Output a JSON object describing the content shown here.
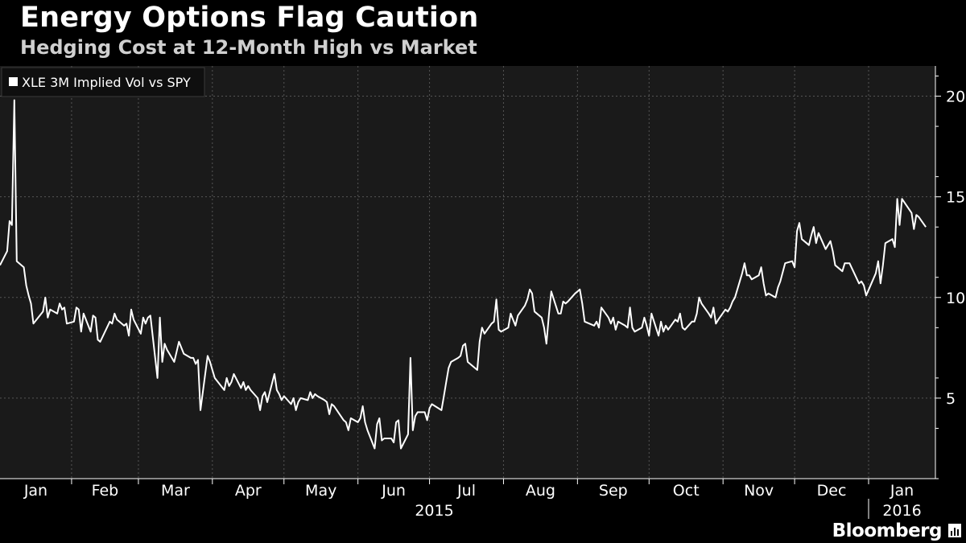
{
  "header": {
    "title": "Energy Options Flag Caution",
    "subtitle": "Hedging Cost at 12-Month High vs Market"
  },
  "brand": {
    "name": "Bloomberg"
  },
  "colors": {
    "background": "#000000",
    "plot_background": "#1a1a1a",
    "line": "#ffffff",
    "grid": "#555555",
    "axis_text": "#ffffff"
  },
  "chart_data": {
    "type": "line",
    "title": "Energy Options Flag Caution",
    "subtitle": "Hedging Cost at 12-Month High vs Market",
    "xlabel": "",
    "ylabel": "",
    "ylim": [
      1,
      21.5
    ],
    "yticks": [
      5,
      10,
      15,
      20
    ],
    "grid": true,
    "legend_position": "top-left",
    "x_range": [
      "2015-01-02",
      "2016-01-29"
    ],
    "x_month_labels": [
      "Jan",
      "Feb",
      "Mar",
      "Apr",
      "May",
      "Jun",
      "Jul",
      "Aug",
      "Sep",
      "Oct",
      "Nov",
      "Dec",
      "Jan"
    ],
    "x_year_labels": [
      "2015",
      "2016"
    ],
    "series": [
      {
        "name": "XLE 3M Implied Vol vs SPY",
        "color": "#ffffff",
        "points": [
          [
            "2015-01-02",
            11.6
          ],
          [
            "2015-01-05",
            12.3
          ],
          [
            "2015-01-06",
            13.8
          ],
          [
            "2015-01-07",
            13.6
          ],
          [
            "2015-01-08",
            19.8
          ],
          [
            "2015-01-09",
            11.8
          ],
          [
            "2015-01-12",
            11.5
          ],
          [
            "2015-01-13",
            10.6
          ],
          [
            "2015-01-14",
            10.1
          ],
          [
            "2015-01-15",
            9.7
          ],
          [
            "2015-01-16",
            8.7
          ],
          [
            "2015-01-20",
            9.3
          ],
          [
            "2015-01-21",
            10.0
          ],
          [
            "2015-01-22",
            9.0
          ],
          [
            "2015-01-23",
            9.4
          ],
          [
            "2015-01-26",
            9.2
          ],
          [
            "2015-01-27",
            9.7
          ],
          [
            "2015-01-28",
            9.4
          ],
          [
            "2015-01-29",
            9.5
          ],
          [
            "2015-01-30",
            8.7
          ],
          [
            "2015-02-02",
            8.8
          ],
          [
            "2015-02-03",
            9.5
          ],
          [
            "2015-02-04",
            9.4
          ],
          [
            "2015-02-05",
            8.3
          ],
          [
            "2015-02-06",
            9.2
          ],
          [
            "2015-02-09",
            8.3
          ],
          [
            "2015-02-10",
            9.1
          ],
          [
            "2015-02-11",
            9.0
          ],
          [
            "2015-02-12",
            7.9
          ],
          [
            "2015-02-13",
            7.8
          ],
          [
            "2015-02-17",
            8.8
          ],
          [
            "2015-02-18",
            8.7
          ],
          [
            "2015-02-19",
            9.2
          ],
          [
            "2015-02-20",
            8.9
          ],
          [
            "2015-02-23",
            8.6
          ],
          [
            "2015-02-24",
            8.7
          ],
          [
            "2015-02-25",
            8.1
          ],
          [
            "2015-02-26",
            9.4
          ],
          [
            "2015-02-27",
            8.9
          ],
          [
            "2015-03-02",
            8.2
          ],
          [
            "2015-03-03",
            9.0
          ],
          [
            "2015-03-04",
            8.7
          ],
          [
            "2015-03-05",
            9.0
          ],
          [
            "2015-03-06",
            9.1
          ],
          [
            "2015-03-09",
            6.0
          ],
          [
            "2015-03-10",
            9.0
          ],
          [
            "2015-03-11",
            6.8
          ],
          [
            "2015-03-12",
            7.7
          ],
          [
            "2015-03-13",
            7.4
          ],
          [
            "2015-03-16",
            6.8
          ],
          [
            "2015-03-17",
            7.3
          ],
          [
            "2015-03-18",
            7.8
          ],
          [
            "2015-03-19",
            7.5
          ],
          [
            "2015-03-20",
            7.2
          ],
          [
            "2015-03-23",
            7.0
          ],
          [
            "2015-03-24",
            7.0
          ],
          [
            "2015-03-25",
            6.7
          ],
          [
            "2015-03-26",
            6.9
          ],
          [
            "2015-03-27",
            4.4
          ],
          [
            "2015-03-30",
            7.1
          ],
          [
            "2015-03-31",
            6.8
          ],
          [
            "2015-04-01",
            6.4
          ],
          [
            "2015-04-02",
            6.0
          ],
          [
            "2015-04-06",
            5.4
          ],
          [
            "2015-04-07",
            6.0
          ],
          [
            "2015-04-08",
            5.6
          ],
          [
            "2015-04-09",
            5.8
          ],
          [
            "2015-04-10",
            6.2
          ],
          [
            "2015-04-13",
            5.5
          ],
          [
            "2015-04-14",
            5.8
          ],
          [
            "2015-04-15",
            5.4
          ],
          [
            "2015-04-16",
            5.6
          ],
          [
            "2015-04-17",
            5.4
          ],
          [
            "2015-04-20",
            5.0
          ],
          [
            "2015-04-21",
            4.4
          ],
          [
            "2015-04-22",
            5.1
          ],
          [
            "2015-04-23",
            5.3
          ],
          [
            "2015-04-24",
            4.8
          ],
          [
            "2015-04-27",
            6.2
          ],
          [
            "2015-04-28",
            5.4
          ],
          [
            "2015-04-29",
            5.2
          ],
          [
            "2015-04-30",
            4.9
          ],
          [
            "2015-05-01",
            5.1
          ],
          [
            "2015-05-04",
            4.7
          ],
          [
            "2015-05-05",
            5.0
          ],
          [
            "2015-05-06",
            4.4
          ],
          [
            "2015-05-07",
            4.8
          ],
          [
            "2015-05-08",
            5.0
          ],
          [
            "2015-05-11",
            4.9
          ],
          [
            "2015-05-12",
            5.3
          ],
          [
            "2015-05-13",
            5.0
          ],
          [
            "2015-05-14",
            5.2
          ],
          [
            "2015-05-15",
            5.1
          ],
          [
            "2015-05-18",
            4.9
          ],
          [
            "2015-05-19",
            4.8
          ],
          [
            "2015-05-20",
            4.2
          ],
          [
            "2015-05-21",
            4.7
          ],
          [
            "2015-05-22",
            4.6
          ],
          [
            "2015-05-26",
            3.9
          ],
          [
            "2015-05-27",
            3.8
          ],
          [
            "2015-05-28",
            3.4
          ],
          [
            "2015-05-29",
            4.0
          ],
          [
            "2015-06-01",
            3.8
          ],
          [
            "2015-06-02",
            4.0
          ],
          [
            "2015-06-03",
            4.6
          ],
          [
            "2015-06-04",
            3.8
          ],
          [
            "2015-06-05",
            3.4
          ],
          [
            "2015-06-08",
            2.5
          ],
          [
            "2015-06-09",
            3.7
          ],
          [
            "2015-06-10",
            4.0
          ],
          [
            "2015-06-11",
            2.9
          ],
          [
            "2015-06-12",
            3.0
          ],
          [
            "2015-06-15",
            3.0
          ],
          [
            "2015-06-16",
            2.8
          ],
          [
            "2015-06-17",
            3.8
          ],
          [
            "2015-06-18",
            3.9
          ],
          [
            "2015-06-19",
            2.5
          ],
          [
            "2015-06-22",
            3.2
          ],
          [
            "2015-06-23",
            7.0
          ],
          [
            "2015-06-24",
            3.4
          ],
          [
            "2015-06-25",
            4.1
          ],
          [
            "2015-06-26",
            4.3
          ],
          [
            "2015-06-29",
            4.3
          ],
          [
            "2015-06-30",
            3.9
          ],
          [
            "2015-07-01",
            4.5
          ],
          [
            "2015-07-02",
            4.7
          ],
          [
            "2015-07-06",
            4.4
          ],
          [
            "2015-07-07",
            5.1
          ],
          [
            "2015-07-08",
            5.8
          ],
          [
            "2015-07-09",
            6.5
          ],
          [
            "2015-07-10",
            6.8
          ],
          [
            "2015-07-13",
            7.0
          ],
          [
            "2015-07-14",
            7.1
          ],
          [
            "2015-07-15",
            7.6
          ],
          [
            "2015-07-16",
            7.7
          ],
          [
            "2015-07-17",
            6.8
          ],
          [
            "2015-07-20",
            6.5
          ],
          [
            "2015-07-21",
            6.4
          ],
          [
            "2015-07-22",
            7.8
          ],
          [
            "2015-07-23",
            8.5
          ],
          [
            "2015-07-24",
            8.2
          ],
          [
            "2015-07-27",
            8.7
          ],
          [
            "2015-07-28",
            8.8
          ],
          [
            "2015-07-29",
            9.9
          ],
          [
            "2015-07-30",
            8.4
          ],
          [
            "2015-07-31",
            8.3
          ],
          [
            "2015-08-03",
            8.5
          ],
          [
            "2015-08-04",
            9.2
          ],
          [
            "2015-08-05",
            8.9
          ],
          [
            "2015-08-06",
            8.6
          ],
          [
            "2015-08-07",
            9.1
          ],
          [
            "2015-08-10",
            9.6
          ],
          [
            "2015-08-11",
            9.9
          ],
          [
            "2015-08-12",
            10.4
          ],
          [
            "2015-08-13",
            10.2
          ],
          [
            "2015-08-14",
            9.3
          ],
          [
            "2015-08-17",
            9.0
          ],
          [
            "2015-08-18",
            8.5
          ],
          [
            "2015-08-19",
            7.7
          ],
          [
            "2015-08-20",
            9.1
          ],
          [
            "2015-08-21",
            10.3
          ],
          [
            "2015-08-24",
            9.2
          ],
          [
            "2015-08-25",
            9.2
          ],
          [
            "2015-08-26",
            9.8
          ],
          [
            "2015-08-27",
            9.7
          ],
          [
            "2015-08-28",
            9.8
          ],
          [
            "2015-08-31",
            10.2
          ],
          [
            "2015-09-01",
            10.3
          ],
          [
            "2015-09-02",
            10.4
          ],
          [
            "2015-09-03",
            9.7
          ],
          [
            "2015-09-04",
            8.8
          ],
          [
            "2015-09-08",
            8.6
          ],
          [
            "2015-09-09",
            8.8
          ],
          [
            "2015-09-10",
            8.5
          ],
          [
            "2015-09-11",
            9.5
          ],
          [
            "2015-09-14",
            9.0
          ],
          [
            "2015-09-15",
            8.7
          ],
          [
            "2015-09-16",
            9.0
          ],
          [
            "2015-09-17",
            8.4
          ],
          [
            "2015-09-18",
            8.8
          ],
          [
            "2015-09-21",
            8.6
          ],
          [
            "2015-09-22",
            8.5
          ],
          [
            "2015-09-23",
            9.5
          ],
          [
            "2015-09-24",
            8.5
          ],
          [
            "2015-09-25",
            8.3
          ],
          [
            "2015-09-28",
            8.5
          ],
          [
            "2015-09-29",
            9.0
          ],
          [
            "2015-09-30",
            8.6
          ],
          [
            "2015-10-01",
            8.1
          ],
          [
            "2015-10-02",
            9.2
          ],
          [
            "2015-10-05",
            8.1
          ],
          [
            "2015-10-06",
            8.8
          ],
          [
            "2015-10-07",
            8.3
          ],
          [
            "2015-10-08",
            8.6
          ],
          [
            "2015-10-09",
            8.4
          ],
          [
            "2015-10-12",
            8.9
          ],
          [
            "2015-10-13",
            8.8
          ],
          [
            "2015-10-14",
            9.2
          ],
          [
            "2015-10-15",
            8.5
          ],
          [
            "2015-10-16",
            8.4
          ],
          [
            "2015-10-19",
            8.8
          ],
          [
            "2015-10-20",
            8.8
          ],
          [
            "2015-10-21",
            9.2
          ],
          [
            "2015-10-22",
            10.0
          ],
          [
            "2015-10-23",
            9.7
          ],
          [
            "2015-10-26",
            9.2
          ],
          [
            "2015-10-27",
            9.0
          ],
          [
            "2015-10-28",
            9.5
          ],
          [
            "2015-10-29",
            8.7
          ],
          [
            "2015-10-30",
            8.9
          ],
          [
            "2015-11-02",
            9.4
          ],
          [
            "2015-11-03",
            9.3
          ],
          [
            "2015-11-04",
            9.5
          ],
          [
            "2015-11-05",
            9.8
          ],
          [
            "2015-11-06",
            10.0
          ],
          [
            "2015-11-09",
            11.2
          ],
          [
            "2015-11-10",
            11.7
          ],
          [
            "2015-11-11",
            11.1
          ],
          [
            "2015-11-12",
            11.1
          ],
          [
            "2015-11-13",
            10.9
          ],
          [
            "2015-11-16",
            11.1
          ],
          [
            "2015-11-17",
            11.5
          ],
          [
            "2015-11-18",
            10.7
          ],
          [
            "2015-11-19",
            10.1
          ],
          [
            "2015-11-20",
            10.2
          ],
          [
            "2015-11-23",
            10.0
          ],
          [
            "2015-11-24",
            10.5
          ],
          [
            "2015-11-25",
            10.8
          ],
          [
            "2015-11-27",
            11.7
          ],
          [
            "2015-11-30",
            11.8
          ],
          [
            "2015-12-01",
            11.5
          ],
          [
            "2015-12-02",
            13.3
          ],
          [
            "2015-12-03",
            13.7
          ],
          [
            "2015-12-04",
            12.9
          ],
          [
            "2015-12-07",
            12.6
          ],
          [
            "2015-12-08",
            13.1
          ],
          [
            "2015-12-09",
            13.5
          ],
          [
            "2015-12-10",
            12.7
          ],
          [
            "2015-12-11",
            13.2
          ],
          [
            "2015-12-14",
            12.4
          ],
          [
            "2015-12-15",
            12.6
          ],
          [
            "2015-12-16",
            12.8
          ],
          [
            "2015-12-17",
            12.3
          ],
          [
            "2015-12-18",
            11.6
          ],
          [
            "2015-12-21",
            11.3
          ],
          [
            "2015-12-22",
            11.7
          ],
          [
            "2015-12-23",
            11.7
          ],
          [
            "2015-12-24",
            11.7
          ],
          [
            "2015-12-28",
            10.7
          ],
          [
            "2015-12-29",
            10.8
          ],
          [
            "2015-12-30",
            10.6
          ],
          [
            "2015-12-31",
            10.1
          ],
          [
            "2016-01-04",
            11.2
          ],
          [
            "2016-01-05",
            11.8
          ],
          [
            "2016-01-06",
            10.7
          ],
          [
            "2016-01-07",
            11.6
          ],
          [
            "2016-01-08",
            12.7
          ],
          [
            "2016-01-11",
            12.9
          ],
          [
            "2016-01-12",
            12.5
          ],
          [
            "2016-01-13",
            14.9
          ],
          [
            "2016-01-14",
            13.6
          ],
          [
            "2016-01-15",
            14.9
          ],
          [
            "2016-01-19",
            14.2
          ],
          [
            "2016-01-20",
            13.4
          ],
          [
            "2016-01-21",
            14.1
          ],
          [
            "2016-01-22",
            14.0
          ],
          [
            "2016-01-25",
            13.5
          ]
        ]
      }
    ]
  }
}
